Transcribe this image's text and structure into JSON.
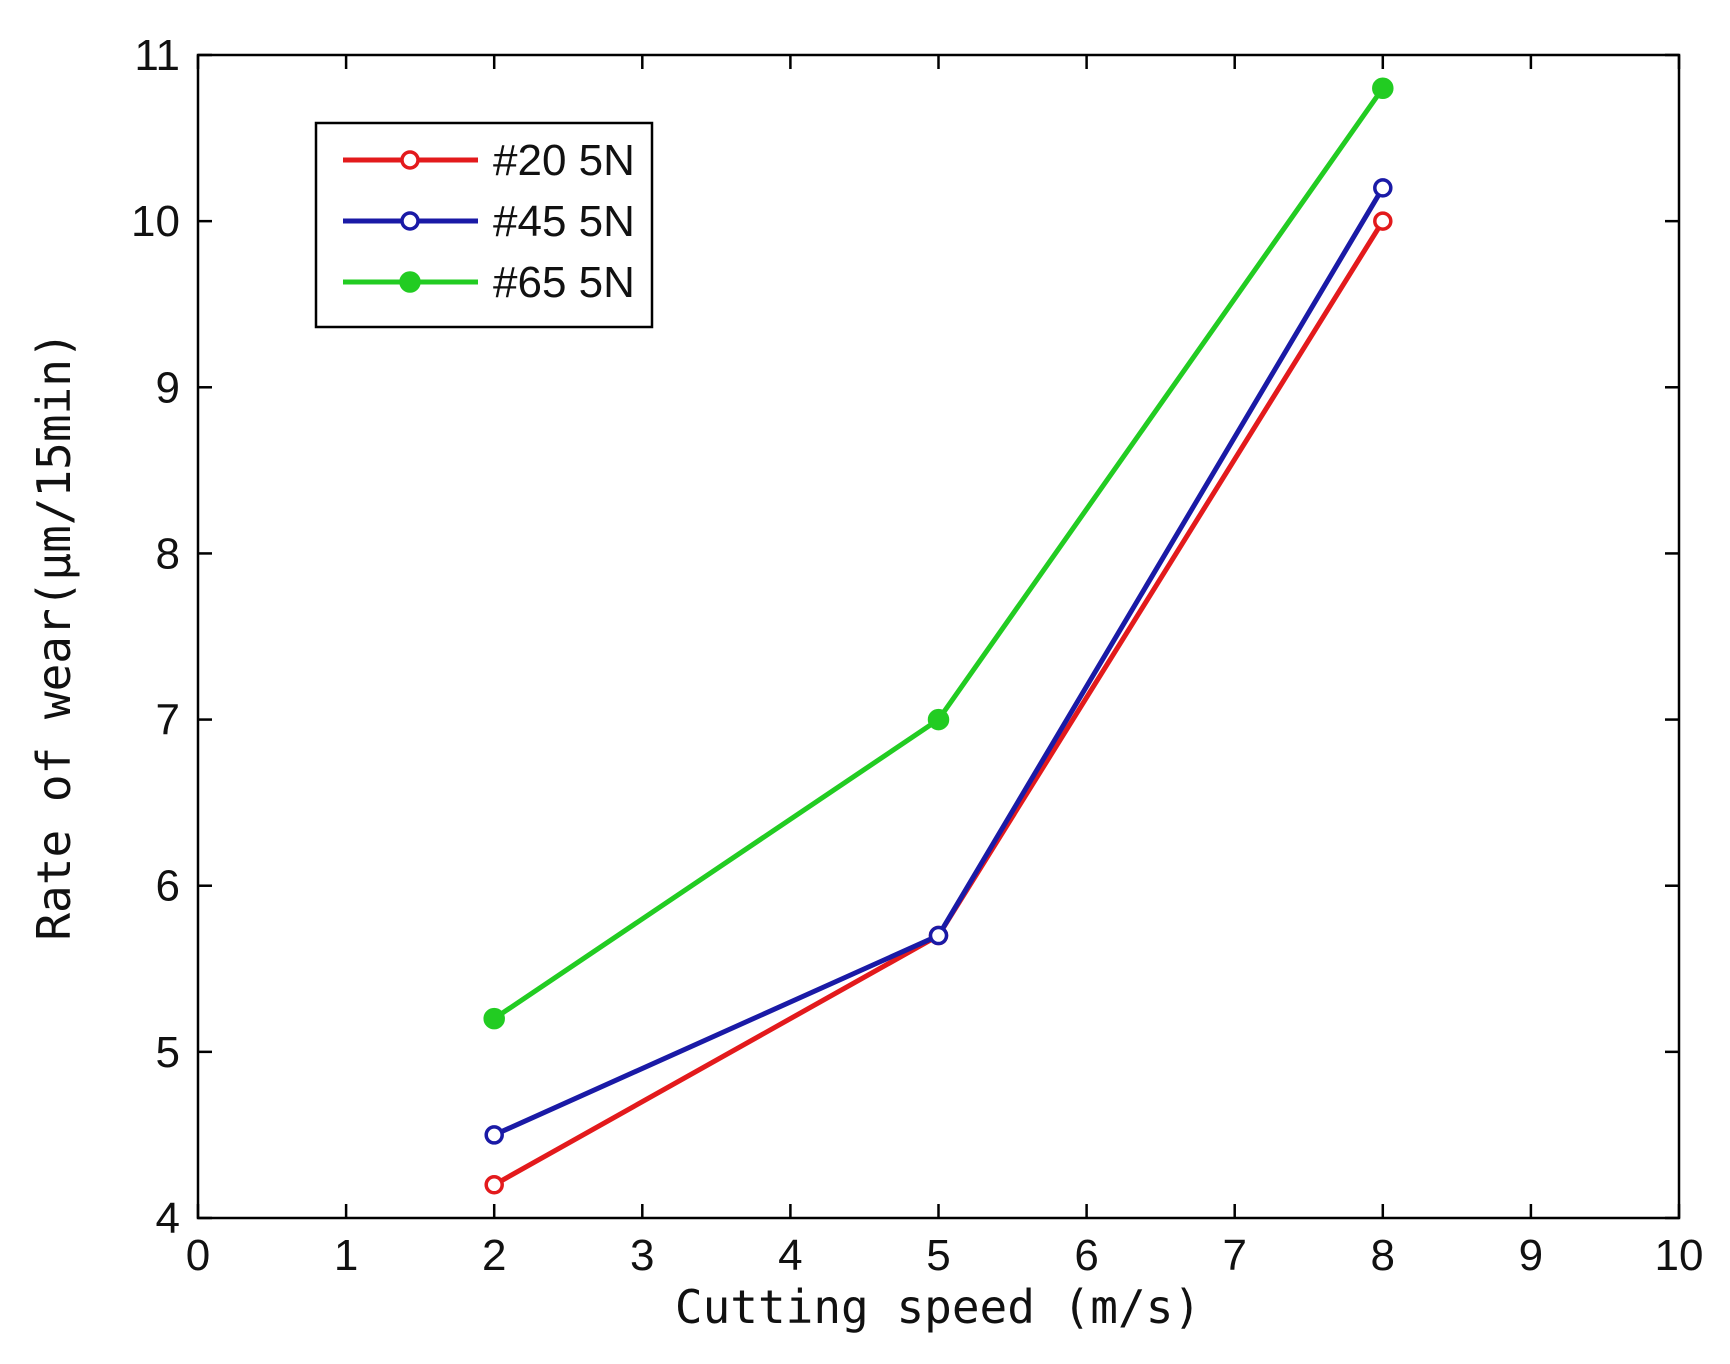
{
  "chart_data": {
    "type": "line",
    "title": "",
    "xlabel": "Cutting speed (m/s)",
    "ylabel": "Rate of wear(μm/15min)",
    "xlim": [
      0,
      10
    ],
    "ylim": [
      4,
      11
    ],
    "xticks": [
      "0",
      "1",
      "2",
      "3",
      "4",
      "5",
      "6",
      "7",
      "8",
      "9",
      "10"
    ],
    "yticks": [
      "4",
      "5",
      "6",
      "7",
      "8",
      "9",
      "10",
      "11"
    ],
    "grid": false,
    "legend_position": "top-left",
    "x": [
      2,
      5,
      8
    ],
    "series": [
      {
        "name": "#20 5N",
        "color": "#e31a1c",
        "marker": "open-circle",
        "values": [
          4.2,
          5.7,
          10.0
        ]
      },
      {
        "name": "#45 5N",
        "color": "#1a1aa6",
        "marker": "open-circle",
        "values": [
          4.5,
          5.7,
          10.2
        ]
      },
      {
        "name": "#65 5N",
        "color": "#22cc22",
        "marker": "filled-circle",
        "values": [
          5.2,
          7.0,
          10.8
        ]
      }
    ]
  }
}
